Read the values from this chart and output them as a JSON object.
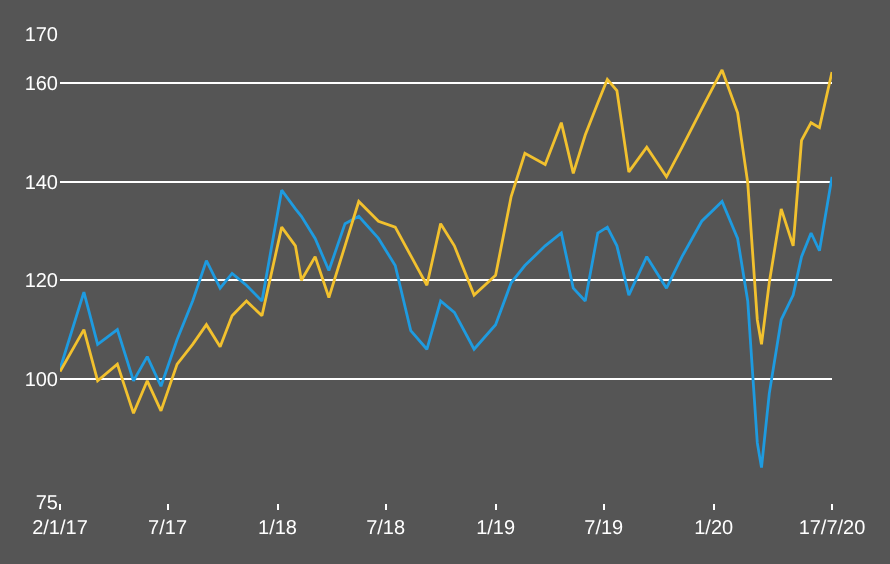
{
  "chart_data": {
    "type": "line",
    "x": [
      "2017-01-02",
      "2017-02-11",
      "2017-03-06",
      "2017-04-08",
      "2017-05-05",
      "2017-05-28",
      "2017-06-20",
      "2017-07-17",
      "2017-08-12",
      "2017-09-04",
      "2017-09-27",
      "2017-10-17",
      "2017-11-10",
      "2017-12-06",
      "2018-01-08",
      "2018-01-31",
      "2018-02-10",
      "2018-03-05",
      "2018-03-28",
      "2018-04-24",
      "2018-05-17",
      "2018-06-19",
      "2018-07-17",
      "2018-08-12",
      "2018-09-08",
      "2018-10-01",
      "2018-10-24",
      "2018-11-26",
      "2019-01-01",
      "2019-01-27",
      "2019-02-19",
      "2019-03-25",
      "2019-04-21",
      "2019-05-11",
      "2019-05-31",
      "2019-06-21",
      "2019-07-07",
      "2019-07-23",
      "2019-08-12",
      "2019-09-11",
      "2019-10-14",
      "2019-11-09",
      "2019-12-12",
      "2020-01-15",
      "2020-02-10",
      "2020-02-27",
      "2020-03-14",
      "2020-03-21",
      "2020-04-03",
      "2020-04-23",
      "2020-05-13",
      "2020-05-27",
      "2020-06-12",
      "2020-06-26",
      "2020-07-17"
    ],
    "series": [
      {
        "color": "#1e9be0",
        "values": [
          102,
          117.6,
          107,
          110,
          99.6,
          104.5,
          98.5,
          108,
          115.8,
          124,
          118.4,
          121.4,
          119,
          115.8,
          138.3,
          134.5,
          133,
          128.5,
          122,
          131.5,
          133,
          128.5,
          123,
          109.8,
          106,
          115.8,
          113.5,
          106,
          111,
          119.5,
          123,
          127,
          129.6,
          118.4,
          115.8,
          129.6,
          130.8,
          127,
          117,
          124.8,
          118.4,
          124.8,
          132,
          136,
          128.5,
          115.8,
          87,
          82,
          97,
          112,
          117,
          124.8,
          129.6,
          126,
          141
        ]
      },
      {
        "color": "#f2c12e",
        "values": [
          101.5,
          110,
          99.6,
          103,
          93,
          99.6,
          93.5,
          103,
          107,
          111,
          106.5,
          112.8,
          115.8,
          112.8,
          130.8,
          127,
          120,
          124.8,
          116.5,
          127,
          136,
          132,
          130.8,
          125,
          119,
          131.5,
          127,
          117,
          121,
          137,
          145.8,
          143.5,
          152,
          141.7,
          149.5,
          156,
          160.8,
          158.5,
          142,
          147,
          141,
          147,
          154.8,
          162.7,
          154,
          139.8,
          112,
          107,
          119.5,
          134.5,
          127,
          148.4,
          152,
          151,
          162.3
        ]
      }
    ],
    "xlim": [
      "2017-01-02",
      "2020-07-17"
    ],
    "xticks": [
      {
        "value": "2017-01-02",
        "label": "2/1/17"
      },
      {
        "value": "2017-07-01",
        "label": "7/17"
      },
      {
        "value": "2018-01-01",
        "label": "1/18"
      },
      {
        "value": "2018-07-01",
        "label": "7/18"
      },
      {
        "value": "2019-01-01",
        "label": "1/19"
      },
      {
        "value": "2019-07-01",
        "label": "7/19"
      },
      {
        "value": "2020-01-01",
        "label": "1/20"
      },
      {
        "value": "2020-07-17",
        "label": "17/7/20"
      }
    ],
    "ylim": [
      75,
      170
    ],
    "yticks": [
      75,
      100,
      120,
      140,
      160,
      170
    ],
    "grid": "y",
    "marker": "none",
    "line_style": "solid"
  }
}
